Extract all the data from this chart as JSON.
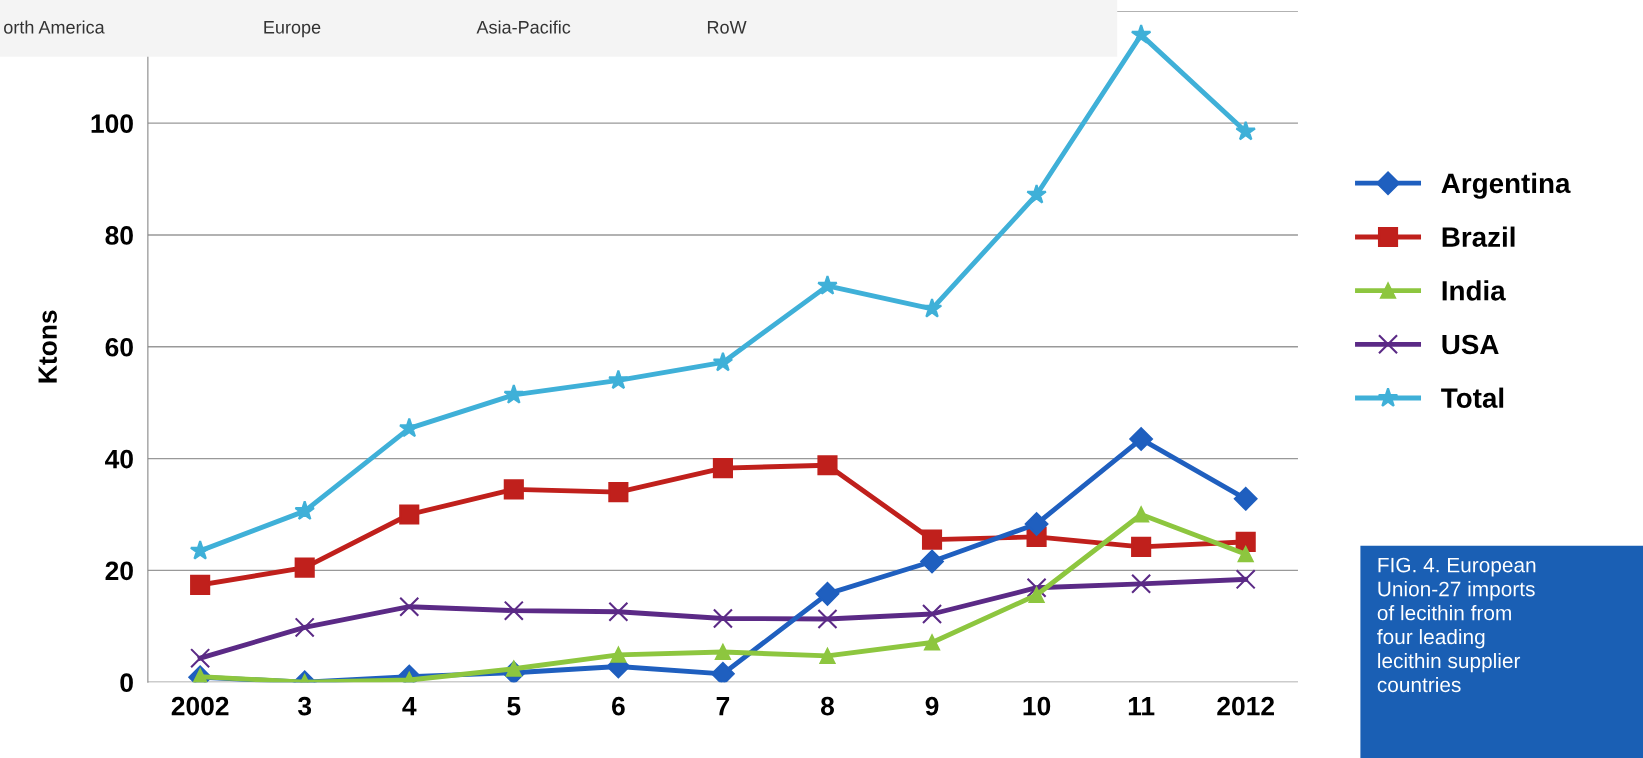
{
  "chart_data": {
    "type": "line",
    "ylabel": "Ktons",
    "categories": [
      "2002",
      "3",
      "4",
      "5",
      "6",
      "7",
      "8",
      "9",
      "10",
      "11",
      "2012"
    ],
    "ylim": [
      0,
      120
    ],
    "yticks": [
      0,
      20,
      40,
      60,
      80,
      100,
      {
        "value": 120,
        "label": null
      }
    ],
    "grid": "y",
    "legend": "right",
    "series": [
      {
        "name": "Argentina",
        "color": "#1f5fbf",
        "marker": "diamond",
        "values": [
          0.9,
          0,
          1,
          1.7,
          2.8,
          1.5,
          15.8,
          21.6,
          28.3,
          43.5,
          32.8
        ]
      },
      {
        "name": "Brazil",
        "color": "#c0201c",
        "marker": "square",
        "values": [
          17.4,
          20.5,
          30,
          34.5,
          34,
          38.3,
          38.8,
          25.5,
          26,
          24.2,
          25.1
        ]
      },
      {
        "name": "India",
        "color": "#8dc63f",
        "marker": "triangle",
        "values": [
          1,
          0,
          0.4,
          2.4,
          4.9,
          5.4,
          4.7,
          7.1,
          15.6,
          30,
          22.9
        ]
      },
      {
        "name": "USA",
        "color": "#5b2a86",
        "marker": "cross",
        "values": [
          4.3,
          9.8,
          13.5,
          12.8,
          12.6,
          11.4,
          11.3,
          12.2,
          16.9,
          17.6,
          18.4
        ]
      },
      {
        "name": "Total",
        "color": "#3fb0d8",
        "marker": "star",
        "values": [
          23.5,
          30.6,
          45.4,
          51.4,
          54,
          57.2,
          70.9,
          66.8,
          87.2,
          115.8,
          98.5
        ]
      }
    ],
    "annotations": [
      "orth America",
      "Europe",
      "Asia-Pacific",
      "RoW",
      "FIG. 4. European\nUnion-27 imports\nof lecithin from\nfour leading\nlecithin supplier\ncountries"
    ]
  }
}
